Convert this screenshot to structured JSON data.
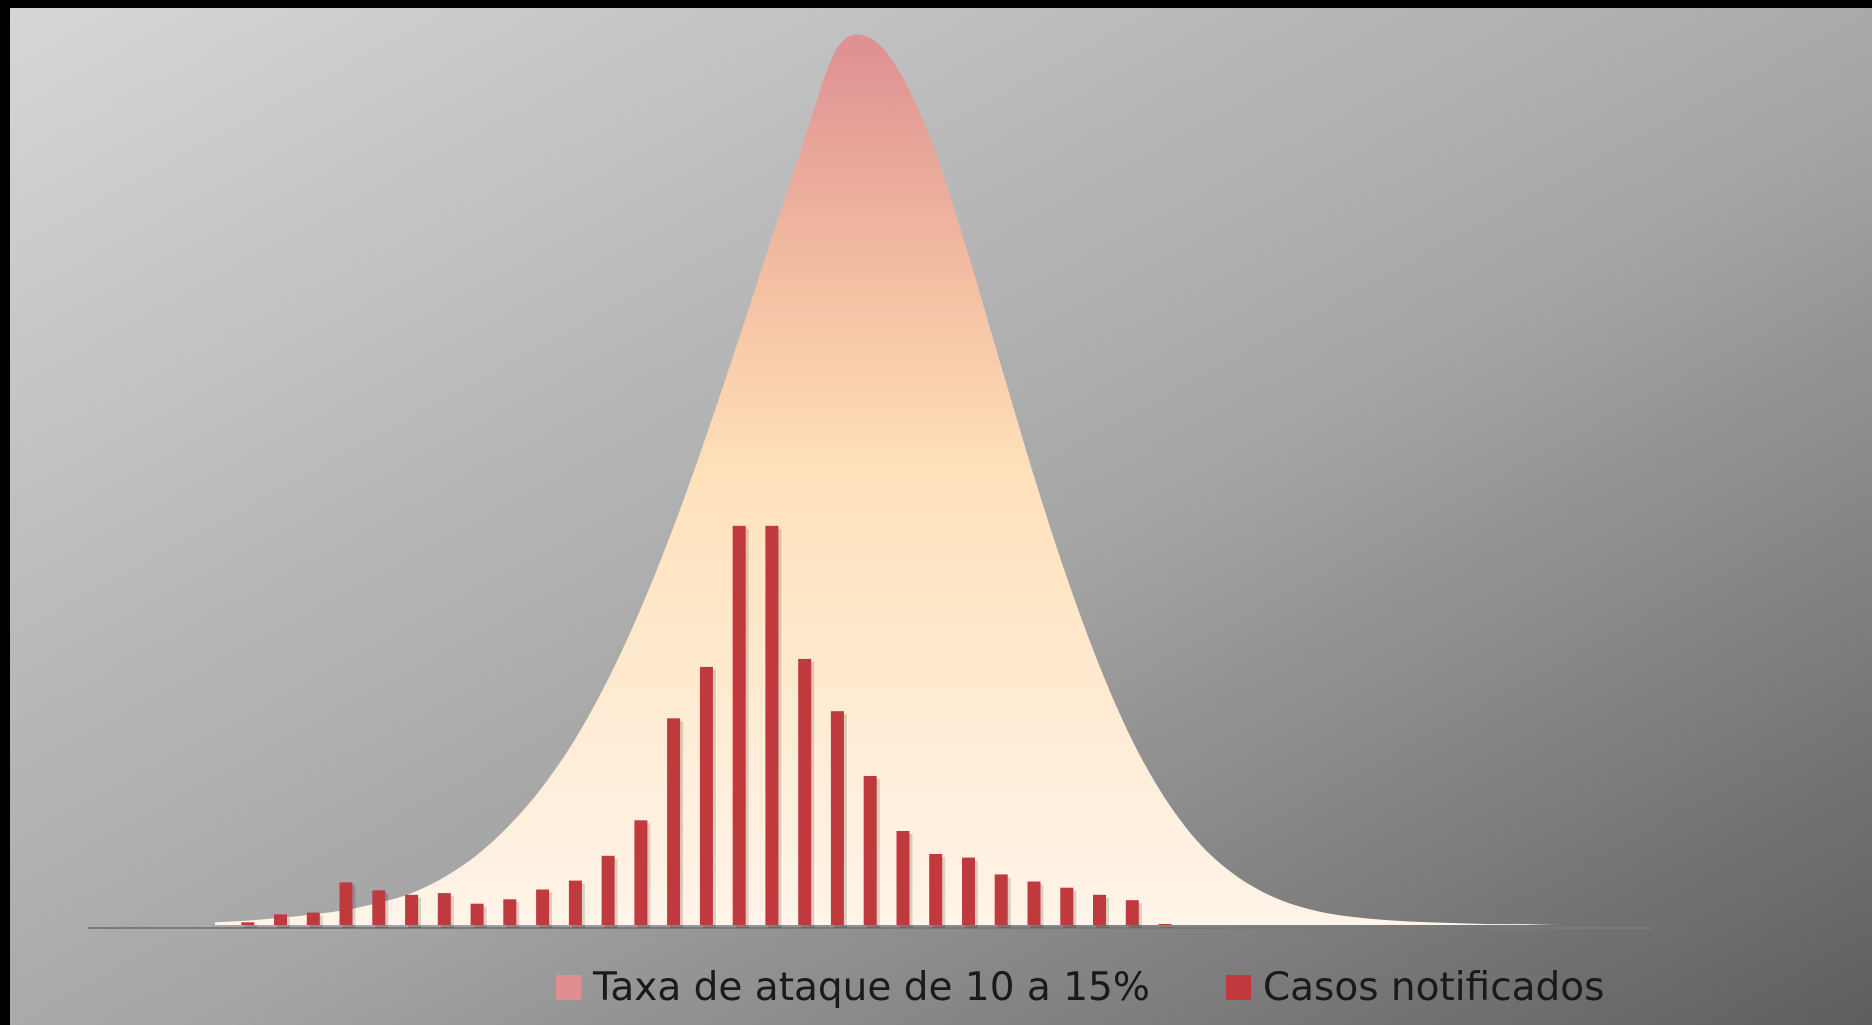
{
  "chart_data": {
    "type": "bar",
    "title": "",
    "xlabel": "",
    "ylabel": "",
    "grid": false,
    "axes_visible": false,
    "legend_position": "bottom",
    "ylim": [
      0,
      100
    ],
    "series": [
      {
        "name": "Taxa de ataque de 10 a 15%",
        "type": "area",
        "color": "#e08e90",
        "x": [
          0,
          1,
          2,
          3,
          4,
          5,
          6,
          7,
          8,
          9,
          10,
          11,
          12,
          13,
          14,
          15,
          16,
          17,
          18,
          19,
          20,
          21,
          22,
          23,
          24,
          25,
          26,
          27,
          28,
          29,
          30,
          31,
          32,
          33,
          34,
          35,
          36,
          37,
          38,
          39,
          40,
          41,
          42,
          43,
          44,
          45,
          46,
          47
        ],
        "values": [
          0.3,
          0.5,
          0.8,
          1.2,
          1.7,
          2.5,
          3.6,
          5.4,
          7.9,
          11.3,
          15.6,
          21,
          27.7,
          35.7,
          44.9,
          55.2,
          66.2,
          77.5,
          88.7,
          98.9,
          100,
          95.5,
          87,
          75.5,
          63,
          50.6,
          39.2,
          29.2,
          20.8,
          14.3,
          9.4,
          6,
          3.7,
          2.2,
          1.3,
          0.8,
          0.5,
          0.3,
          0.2,
          0.1,
          0.1,
          0,
          0,
          0,
          0,
          0,
          0,
          0
        ]
      },
      {
        "name": "Casos notificados",
        "type": "bar",
        "color": "#c0393c",
        "x": [
          1,
          2,
          3,
          4,
          5,
          6,
          7,
          8,
          9,
          10,
          11,
          12,
          13,
          14,
          15,
          16,
          17,
          18,
          19,
          20,
          21,
          22,
          23,
          24,
          25,
          26,
          27,
          28,
          29
        ],
        "values": [
          0.3,
          1.2,
          1.4,
          4.8,
          3.9,
          3.4,
          3.6,
          2.4,
          2.9,
          4,
          5,
          7.8,
          11.8,
          23.3,
          29.1,
          45,
          45,
          30,
          24.1,
          16.8,
          10.6,
          8,
          7.6,
          5.7,
          4.9,
          4.2,
          3.4,
          2.8,
          0
        ]
      }
    ]
  }
}
